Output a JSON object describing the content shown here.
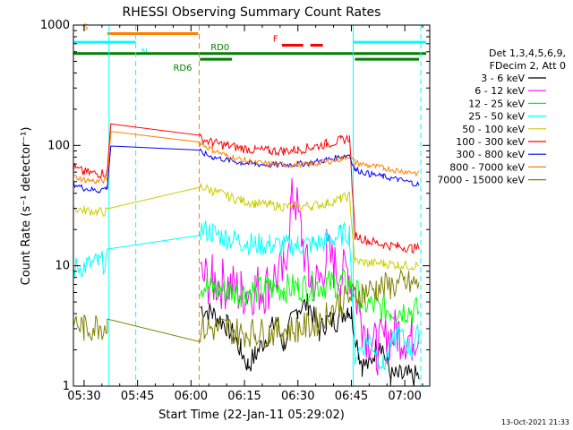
{
  "chart_data": {
    "type": "line",
    "title": "RHESSI Observing Summary Count Rates",
    "xlabel": "Start Time (22-Jan-11 05:29:02)",
    "ylabel": "Count Rate (s⁻¹ detector⁻¹)",
    "y_scale": "log",
    "ylim": [
      1,
      1000
    ],
    "xlim_minutes": [
      327,
      427
    ],
    "x_ticks": [
      {
        "label": "05:30",
        "min": 330
      },
      {
        "label": "05:45",
        "min": 345
      },
      {
        "label": "06:00",
        "min": 360
      },
      {
        "label": "06:15",
        "min": 375
      },
      {
        "label": "06:30",
        "min": 390
      },
      {
        "label": "06:45",
        "min": 405
      },
      {
        "label": "07:00",
        "min": 420
      }
    ],
    "y_ticks": [
      {
        "label": "1",
        "value": 1
      },
      {
        "label": "10",
        "value": 10
      },
      {
        "label": "100",
        "value": 100
      },
      {
        "label": "1000",
        "value": 1000
      }
    ],
    "legend": {
      "placement": "right",
      "header": [
        "Det 1,3,4,5,6,9,",
        "FDecim 2, Att 0"
      ],
      "entries": [
        {
          "label": "3 - 6 keV",
          "color": "#000000"
        },
        {
          "label": "6 - 12 keV",
          "color": "#ff00ff"
        },
        {
          "label": "12 - 25 keV",
          "color": "#00ff00"
        },
        {
          "label": "25 - 50 keV",
          "color": "#00ffff"
        },
        {
          "label": "50 - 100 keV",
          "color": "#cccc00"
        },
        {
          "label": "100 - 300 keV",
          "color": "#ff0000"
        },
        {
          "label": "300 - 800 keV",
          "color": "#0000ff"
        },
        {
          "label": "800 - 7000 keV",
          "color": "#ff8000"
        },
        {
          "label": "7000 - 15000 keV",
          "color": "#808000"
        }
      ]
    },
    "flags": [
      {
        "label": "S",
        "color": "#ff8000",
        "value": 850,
        "segments": [
          [
            336.5,
            362
          ]
        ]
      },
      {
        "label": "N",
        "color": "#00ffff",
        "value": 720,
        "segments": [
          [
            327,
            344.5
          ],
          [
            405.5,
            426
          ]
        ]
      },
      {
        "label": "RD0",
        "color": "#008000",
        "value": 580,
        "segments": [
          [
            327,
            426
          ]
        ]
      },
      {
        "label": "RD6",
        "color": "#008000",
        "value": 520,
        "segments": [
          [
            362.5,
            371.5
          ],
          [
            406,
            424
          ]
        ]
      },
      {
        "label": "F",
        "color": "#ff0000",
        "value": 680,
        "segments": [
          [
            385.5,
            391.5
          ],
          [
            393.5,
            397
          ]
        ]
      }
    ],
    "vlines": [
      {
        "min": 337.0,
        "color": "#00ffff",
        "style": "solid"
      },
      {
        "min": 344.5,
        "color": "#00ffff",
        "style": "dashed"
      },
      {
        "min": 362.3,
        "color": "#ff8000",
        "style": "dashed"
      },
      {
        "min": 405.5,
        "color": "#00ffff",
        "style": "solid"
      },
      {
        "min": 424.5,
        "color": "#00ffff",
        "style": "dashed"
      }
    ],
    "series": [
      {
        "name": "3 - 6 keV",
        "color": "#000000",
        "points": [
          [
            362.6,
            4.5
          ],
          [
            366,
            4.0
          ],
          [
            370,
            3.2
          ],
          [
            372,
            2.6
          ],
          [
            374,
            2.0
          ],
          [
            376,
            1.5
          ],
          [
            378,
            1.8
          ],
          [
            382,
            2.8
          ],
          [
            384,
            3.5
          ],
          [
            386,
            2.2
          ],
          [
            388,
            3.3
          ],
          [
            390,
            4.5
          ],
          [
            393,
            4.8
          ],
          [
            396,
            2.8
          ],
          [
            398,
            3.5
          ],
          [
            401,
            3.5
          ],
          [
            404,
            4.5
          ],
          [
            405,
            4.0
          ],
          [
            407,
            2.0
          ],
          [
            408,
            1.5
          ],
          [
            410,
            1.5
          ],
          [
            413,
            2.5
          ],
          [
            416,
            1.2
          ],
          [
            420,
            1.2
          ],
          [
            424,
            1.2
          ]
        ]
      },
      {
        "name": "6 - 12 keV",
        "color": "#ff00ff",
        "points": [
          [
            362.6,
            8.0
          ],
          [
            366,
            7.5
          ],
          [
            370,
            7.0
          ],
          [
            374,
            6.0
          ],
          [
            378,
            6.5
          ],
          [
            381,
            6.5
          ],
          [
            383,
            8.0
          ],
          [
            386,
            8.5
          ],
          [
            388,
            30
          ],
          [
            389,
            40
          ],
          [
            391,
            18
          ],
          [
            393,
            8
          ],
          [
            396,
            7
          ],
          [
            398,
            13
          ],
          [
            400,
            10
          ],
          [
            402,
            8
          ],
          [
            404,
            9
          ],
          [
            405,
            8
          ],
          [
            408,
            3.5
          ],
          [
            410,
            2.5
          ],
          [
            412,
            2.0
          ],
          [
            415,
            2.5
          ],
          [
            418,
            2.8
          ],
          [
            422,
            2.5
          ],
          [
            424,
            3.2
          ]
        ]
      },
      {
        "name": "12 - 25 keV",
        "color": "#00ff00",
        "points": [
          [
            362.6,
            7.0
          ],
          [
            366,
            6.5
          ],
          [
            370,
            6.2
          ],
          [
            374,
            6.0
          ],
          [
            378,
            6.3
          ],
          [
            382,
            6.5
          ],
          [
            386,
            6.5
          ],
          [
            390,
            6.6
          ],
          [
            394,
            6.8
          ],
          [
            398,
            7.0
          ],
          [
            402,
            7.2
          ],
          [
            405,
            7.0
          ],
          [
            408,
            5.0
          ],
          [
            412,
            4.5
          ],
          [
            416,
            4.3
          ],
          [
            420,
            4.3
          ],
          [
            424,
            4.2
          ]
        ]
      },
      {
        "name": "25 - 50 keV",
        "color": "#00ffff",
        "points": [
          [
            327,
            9.5
          ],
          [
            330,
            10
          ],
          [
            334,
            10.5
          ],
          [
            336.5,
            11
          ],
          [
            362.6,
            20
          ],
          [
            366,
            19
          ],
          [
            370,
            17
          ],
          [
            374,
            16
          ],
          [
            378,
            15
          ],
          [
            382,
            15
          ],
          [
            386,
            14.5
          ],
          [
            390,
            15
          ],
          [
            394,
            15
          ],
          [
            398,
            16
          ],
          [
            402,
            18
          ],
          [
            404.5,
            19
          ],
          [
            406,
            1.8
          ],
          [
            410,
            2.5
          ],
          [
            414,
            1.5
          ],
          [
            418,
            2.8
          ],
          [
            422,
            2.0
          ],
          [
            424,
            2.8
          ]
        ]
      },
      {
        "name": "50 - 100 keV",
        "color": "#cccc00",
        "points": [
          [
            327,
            30
          ],
          [
            330,
            29
          ],
          [
            334,
            28
          ],
          [
            336.5,
            28
          ],
          [
            362.6,
            46
          ],
          [
            366,
            42
          ],
          [
            370,
            38
          ],
          [
            374,
            35
          ],
          [
            378,
            33
          ],
          [
            382,
            32
          ],
          [
            386,
            31
          ],
          [
            390,
            31
          ],
          [
            394,
            31.5
          ],
          [
            398,
            33
          ],
          [
            402,
            36
          ],
          [
            404.5,
            38
          ],
          [
            406,
            11
          ],
          [
            410,
            10.5
          ],
          [
            414,
            10.5
          ],
          [
            418,
            10.2
          ],
          [
            422,
            10
          ],
          [
            424,
            10
          ]
        ]
      },
      {
        "name": "100 - 300 keV",
        "color": "#ff0000",
        "points": [
          [
            327,
            65
          ],
          [
            330,
            60
          ],
          [
            334,
            58
          ],
          [
            336.5,
            60
          ],
          [
            337.5,
            160
          ],
          [
            362.6,
            115
          ],
          [
            366,
            105
          ],
          [
            370,
            100
          ],
          [
            374,
            95
          ],
          [
            378,
            92
          ],
          [
            382,
            90
          ],
          [
            386,
            90
          ],
          [
            390,
            92
          ],
          [
            394,
            97
          ],
          [
            398,
            103
          ],
          [
            402,
            110
          ],
          [
            404.5,
            115
          ],
          [
            406,
            18
          ],
          [
            410,
            16
          ],
          [
            414,
            15
          ],
          [
            418,
            14.5
          ],
          [
            422,
            14
          ],
          [
            424,
            14
          ]
        ]
      },
      {
        "name": "300 - 800 keV",
        "color": "#0000ff",
        "points": [
          [
            327,
            48
          ],
          [
            330,
            44
          ],
          [
            334,
            42
          ],
          [
            336.5,
            45
          ],
          [
            337.5,
            100
          ],
          [
            362.6,
            88
          ],
          [
            366,
            80
          ],
          [
            370,
            76
          ],
          [
            374,
            72
          ],
          [
            378,
            70
          ],
          [
            382,
            69
          ],
          [
            386,
            69
          ],
          [
            390,
            70
          ],
          [
            394,
            72
          ],
          [
            398,
            76
          ],
          [
            402,
            80
          ],
          [
            404.5,
            84
          ],
          [
            406,
            63
          ],
          [
            410,
            58
          ],
          [
            414,
            55
          ],
          [
            418,
            52
          ],
          [
            422,
            49
          ],
          [
            424,
            47
          ]
        ]
      },
      {
        "name": "800 - 7000 keV",
        "color": "#ff8000",
        "points": [
          [
            327,
            55
          ],
          [
            330,
            52
          ],
          [
            334,
            50
          ],
          [
            336.5,
            52
          ],
          [
            337.5,
            130
          ],
          [
            362.6,
            105
          ],
          [
            366,
            92
          ],
          [
            370,
            82
          ],
          [
            374,
            76
          ],
          [
            378,
            72
          ],
          [
            382,
            70
          ],
          [
            386,
            69
          ],
          [
            390,
            69
          ],
          [
            394,
            70
          ],
          [
            398,
            73
          ],
          [
            402,
            77
          ],
          [
            404.5,
            82
          ],
          [
            406,
            72
          ],
          [
            410,
            68
          ],
          [
            414,
            65
          ],
          [
            418,
            62
          ],
          [
            422,
            60
          ],
          [
            424,
            58
          ]
        ]
      },
      {
        "name": "7000 - 15000 keV",
        "color": "#808000",
        "points": [
          [
            327,
            3.5
          ],
          [
            330,
            3.0
          ],
          [
            334,
            3.2
          ],
          [
            336.5,
            3.2
          ],
          [
            362.6,
            3.0
          ],
          [
            366,
            3.0
          ],
          [
            370,
            3.0
          ],
          [
            374,
            2.8
          ],
          [
            378,
            2.8
          ],
          [
            382,
            2.8
          ],
          [
            386,
            2.9
          ],
          [
            390,
            3.0
          ],
          [
            394,
            3.2
          ],
          [
            398,
            4.0
          ],
          [
            402,
            5.0
          ],
          [
            405,
            5.5
          ],
          [
            408,
            6.0
          ],
          [
            412,
            6.5
          ],
          [
            416,
            6.8
          ],
          [
            420,
            7.0
          ],
          [
            424,
            7.0
          ]
        ]
      }
    ]
  },
  "footer": {
    "date": "13-Oct-2021 21:33"
  }
}
